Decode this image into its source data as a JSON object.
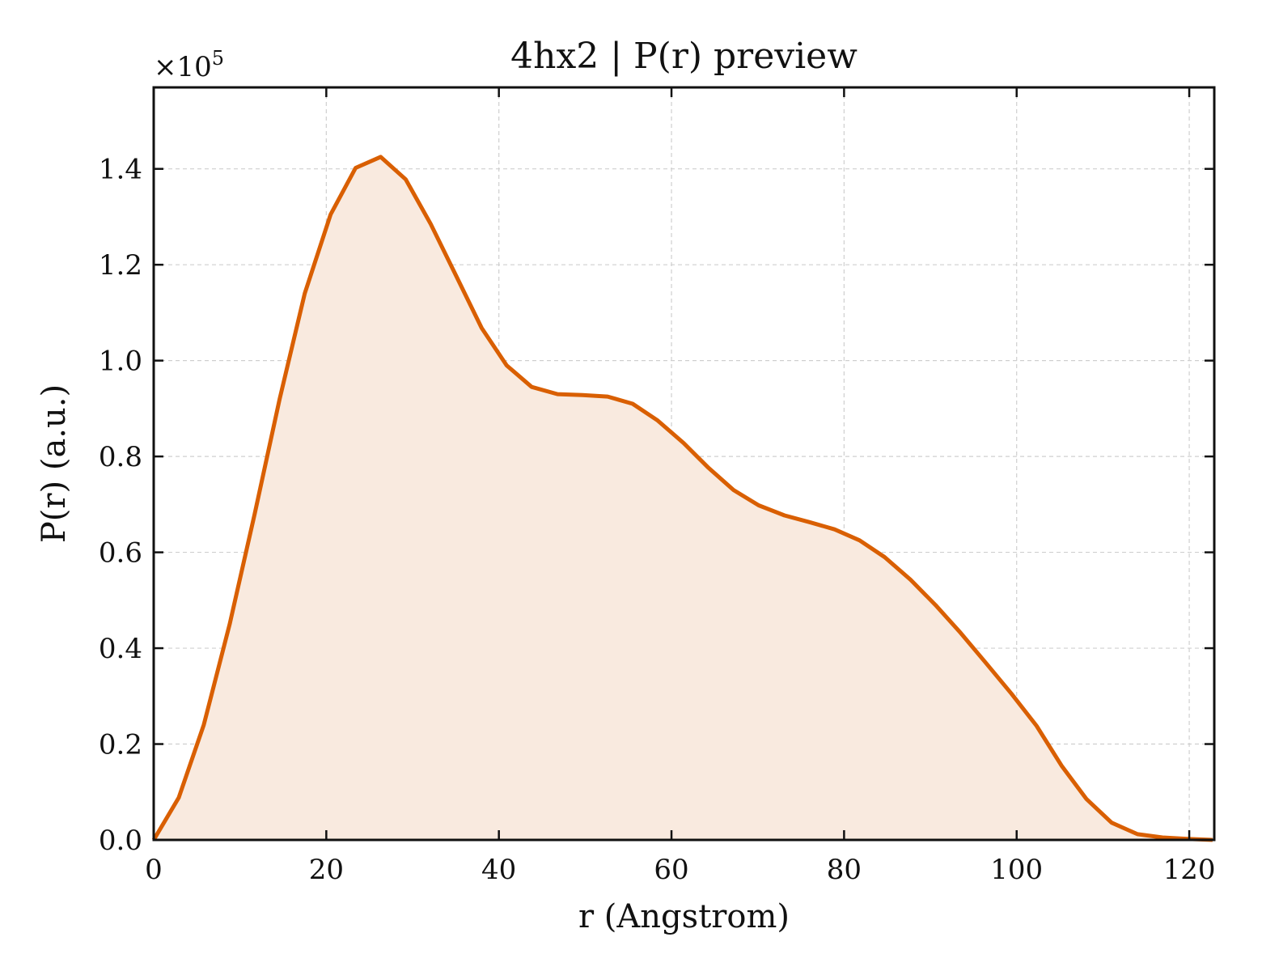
{
  "chart_data": {
    "type": "area",
    "title": "4hx2 | P(r) preview",
    "xlabel": "r (Angstrom)",
    "ylabel": "P(r) (a.u.)",
    "y_offset_text": "×10",
    "y_offset_exponent": "5",
    "y_scale": 100000,
    "xlim": [
      0,
      122.9
    ],
    "ylim": [
      0,
      1.57
    ],
    "x_ticks": [
      0,
      20,
      40,
      60,
      80,
      100,
      120
    ],
    "x_tick_labels": [
      "0",
      "20",
      "40",
      "60",
      "80",
      "100",
      "120"
    ],
    "y_ticks": [
      0,
      0.2,
      0.4,
      0.6,
      0.8,
      1.0,
      1.2,
      1.4
    ],
    "y_tick_labels": [
      "0.0",
      "0.2",
      "0.4",
      "0.6",
      "0.8",
      "1.0",
      "1.2",
      "1.4"
    ],
    "grid": true,
    "legend": "none",
    "line_color": "#d95f02",
    "fill_color": "#f9eadf",
    "series": [
      {
        "x": [
          0,
          2.9,
          5.8,
          8.8,
          11.7,
          14.6,
          17.5,
          20.5,
          23.4,
          26.3,
          29.2,
          32.1,
          35.1,
          38.0,
          40.9,
          43.8,
          46.8,
          49.7,
          52.6,
          55.5,
          58.4,
          61.4,
          64.3,
          67.2,
          70.1,
          73.1,
          76.0,
          78.9,
          81.8,
          84.7,
          87.7,
          90.6,
          93.5,
          96.4,
          99.4,
          102.3,
          105.2,
          108.1,
          111.0,
          114.0,
          116.9,
          119.8,
          122.7
        ],
        "values": [
          0.0,
          0.088,
          0.24,
          0.45,
          0.68,
          0.92,
          1.14,
          1.305,
          1.402,
          1.425,
          1.378,
          1.285,
          1.175,
          1.068,
          0.99,
          0.945,
          0.93,
          0.928,
          0.925,
          0.91,
          0.875,
          0.828,
          0.776,
          0.73,
          0.698,
          0.677,
          0.663,
          0.648,
          0.625,
          0.59,
          0.543,
          0.49,
          0.432,
          0.37,
          0.305,
          0.238,
          0.155,
          0.085,
          0.036,
          0.012,
          0.005,
          0.002,
          0.0
        ]
      }
    ]
  }
}
